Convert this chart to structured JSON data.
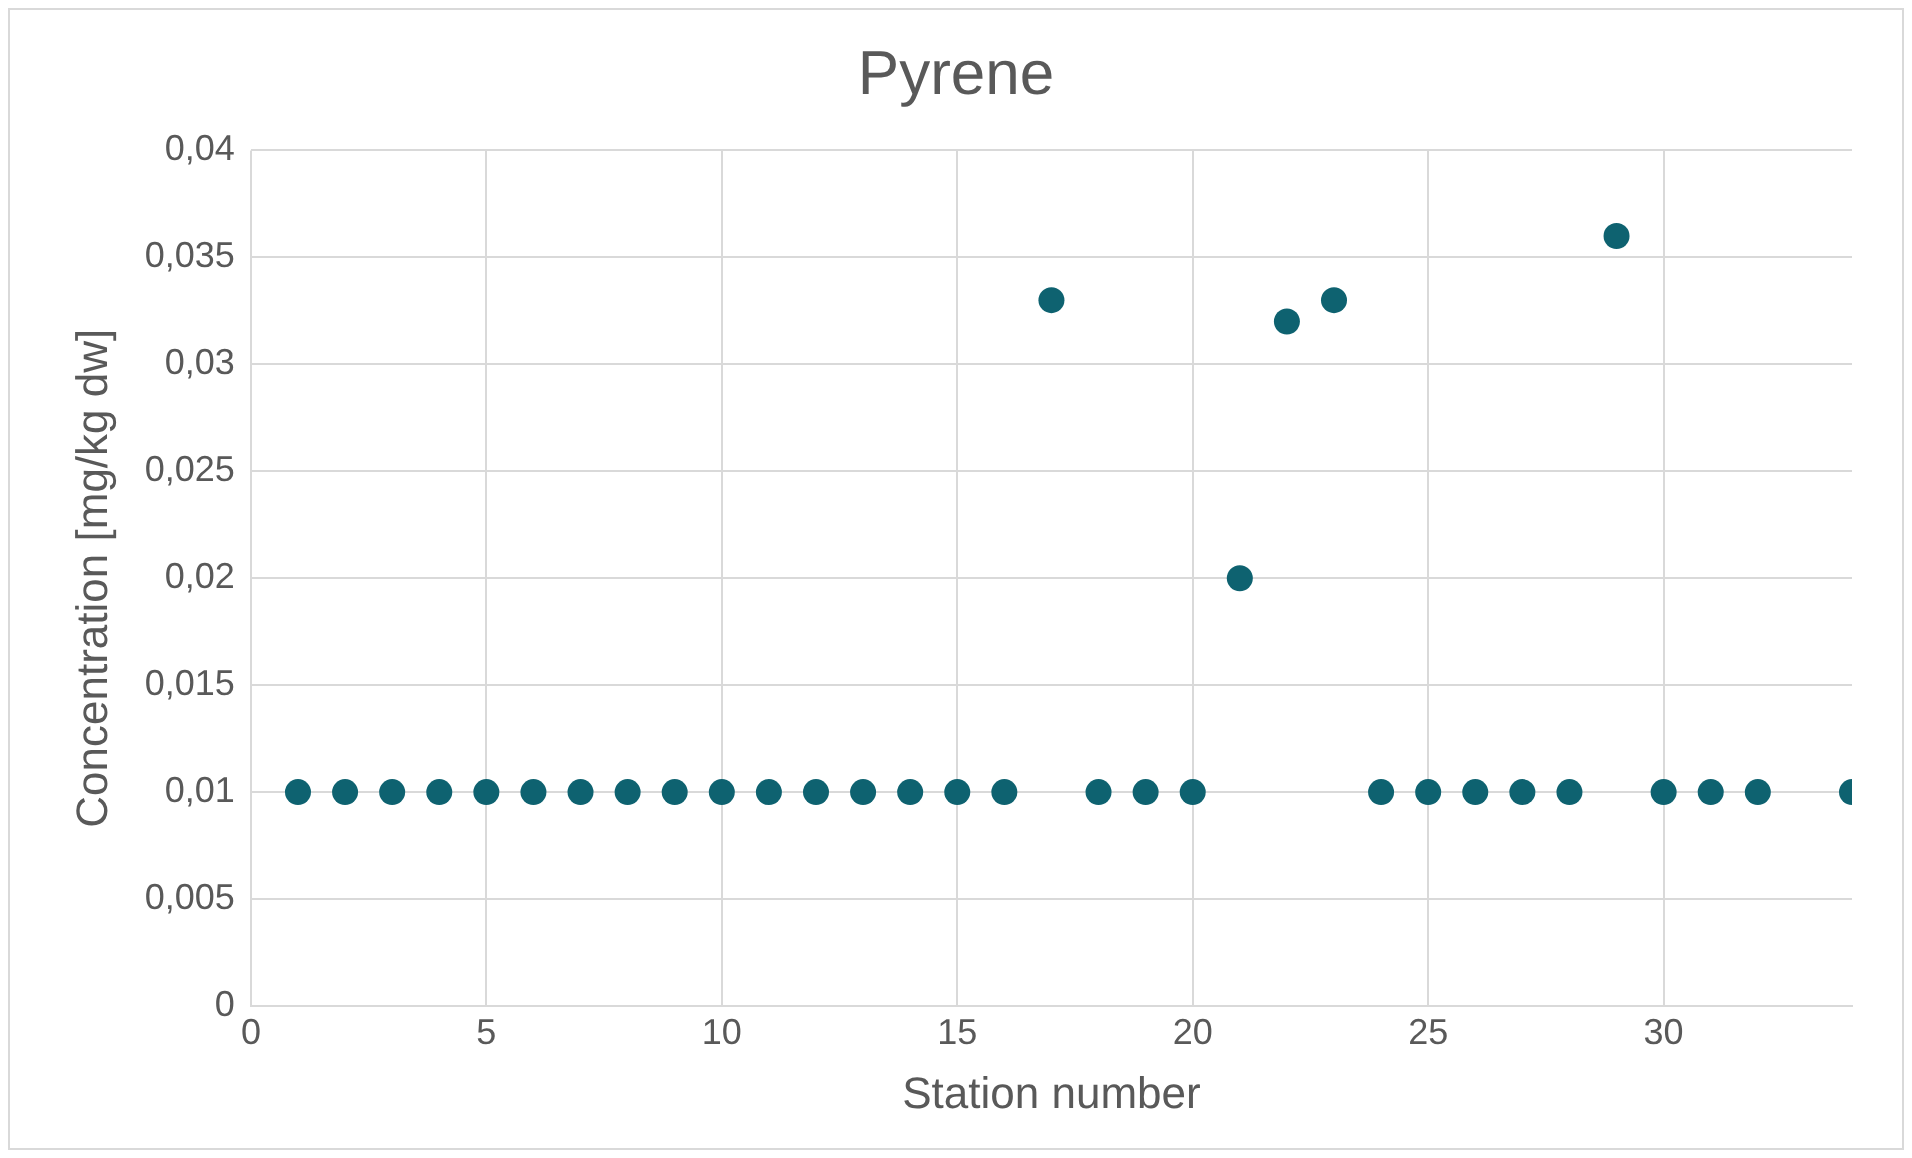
{
  "chart_data": {
    "type": "scatter",
    "title": "Pyrene",
    "xlabel": "Station number",
    "ylabel": "Concentration [mg/kg dw]",
    "x": [
      1,
      2,
      3,
      4,
      5,
      6,
      7,
      8,
      9,
      10,
      11,
      12,
      13,
      14,
      15,
      16,
      17,
      18,
      19,
      20,
      21,
      22,
      23,
      24,
      25,
      26,
      27,
      28,
      29,
      30,
      31,
      32,
      34
    ],
    "series": [
      {
        "color": "#0e6270",
        "values": [
          0.01,
          0.01,
          0.01,
          0.01,
          0.01,
          0.01,
          0.01,
          0.01,
          0.01,
          0.01,
          0.01,
          0.01,
          0.01,
          0.01,
          0.01,
          0.01,
          0.033,
          0.01,
          0.01,
          0.01,
          0.02,
          0.032,
          0.033,
          0.01,
          0.01,
          0.01,
          0.01,
          0.01,
          0.036,
          0.01,
          0.01,
          0.01,
          0.01
        ]
      }
    ],
    "xlim": [
      0,
      34
    ],
    "xticks": [
      0,
      5,
      10,
      15,
      20,
      25,
      30
    ],
    "ylim": [
      0,
      0.04
    ],
    "yticks": [
      0,
      {
        "value": 0.005,
        "label": "0,005"
      },
      {
        "value": 0.01,
        "label": "0,01"
      },
      {
        "value": 0.015,
        "label": "0,015"
      },
      {
        "value": 0.02,
        "label": "0,02"
      },
      {
        "value": 0.025,
        "label": "0,025"
      },
      {
        "value": 0.03,
        "label": "0,03"
      },
      {
        "value": 0.035,
        "label": "0,035"
      },
      {
        "value": 0.04,
        "label": "0,04"
      }
    ],
    "grid": true,
    "legend": false,
    "marker": "circle"
  }
}
